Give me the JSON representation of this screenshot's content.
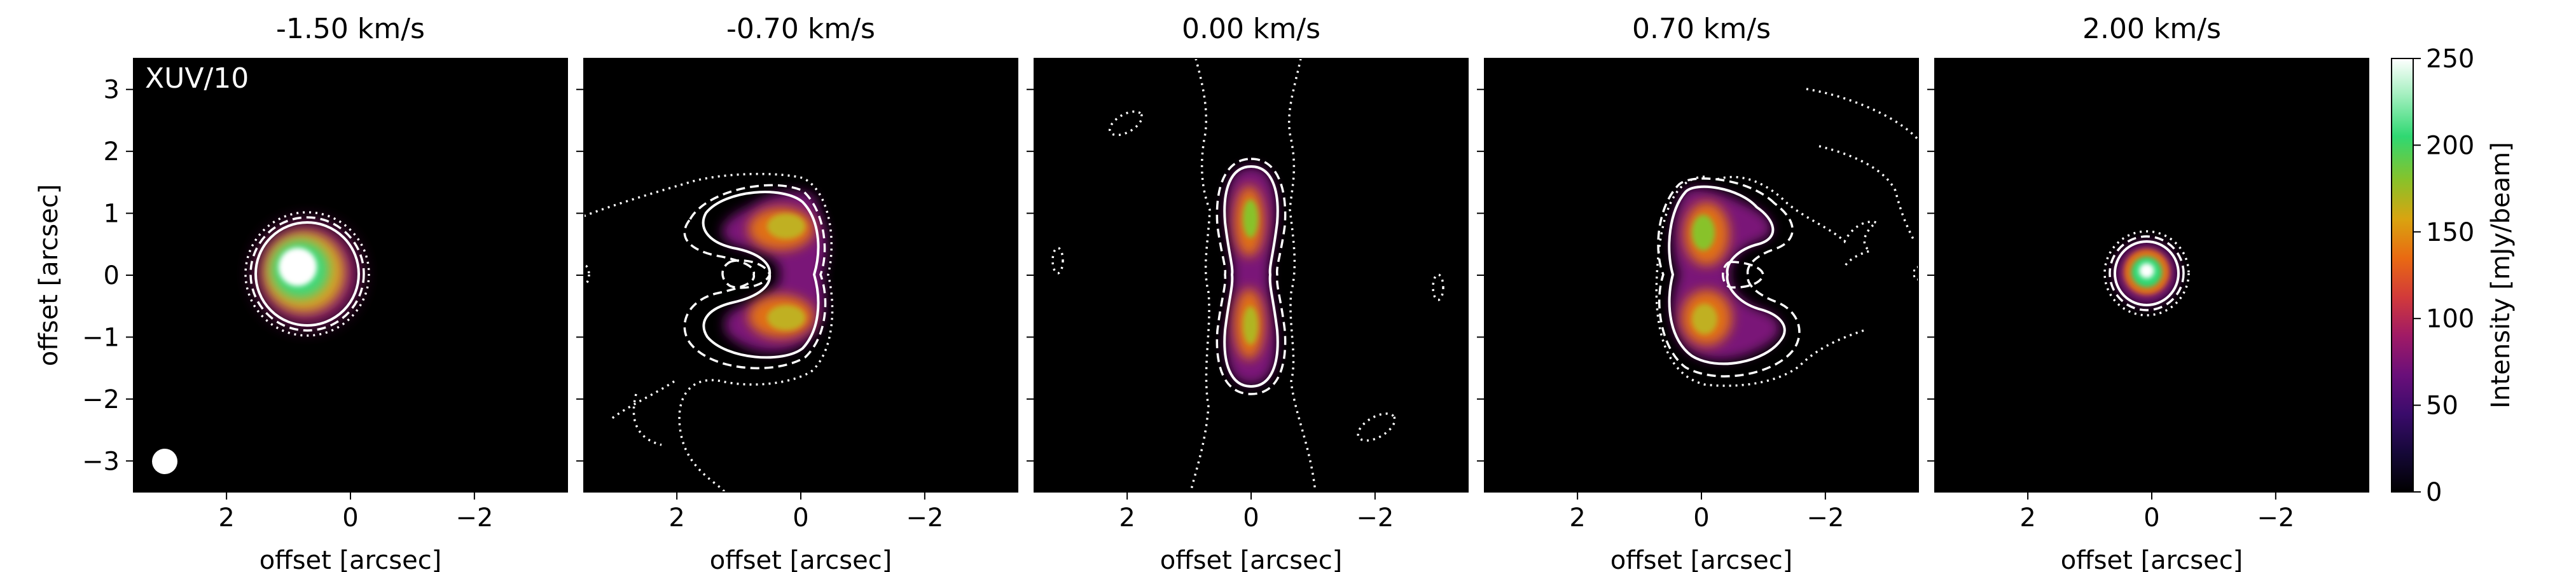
{
  "chart_data": {
    "type": "heatmap",
    "annotation": "XUV/10",
    "xlabel": "offset [arcsec]",
    "ylabel": "offset [arcsec]",
    "xlim": [
      3.5,
      -3.5
    ],
    "ylim": [
      -3.5,
      3.5
    ],
    "xticks": [
      2,
      0,
      -2
    ],
    "xtick_labels": [
      "2",
      "0",
      "−2"
    ],
    "yticks": [
      3,
      2,
      1,
      0,
      -1,
      -2,
      -3
    ],
    "ytick_labels": [
      "3",
      "2",
      "1",
      "0",
      "−1",
      "−2",
      "−3"
    ],
    "beam": {
      "x": 3.0,
      "y": -3.0
    },
    "colorbar": {
      "label": "Intensity [mJy/beam]",
      "range": [
        0,
        250
      ],
      "ticks": [
        0,
        50,
        100,
        150,
        200,
        250
      ],
      "tick_labels": [
        "0",
        "50",
        "100",
        "150",
        "200",
        "250"
      ],
      "cmap": [
        "#000000",
        "#150838",
        "#3a0b6b",
        "#6a0f7a",
        "#a01a66",
        "#d23a3a",
        "#e96a12",
        "#d9a410",
        "#88c22a",
        "#2fd872",
        "#a8f0c2",
        "#ffffff"
      ]
    },
    "channels": [
      {
        "title": "-1.50 km/s"
      },
      {
        "title": "-0.70 km/s"
      },
      {
        "title": "0.00 km/s"
      },
      {
        "title": "0.70 km/s"
      },
      {
        "title": "2.00 km/s"
      }
    ]
  }
}
